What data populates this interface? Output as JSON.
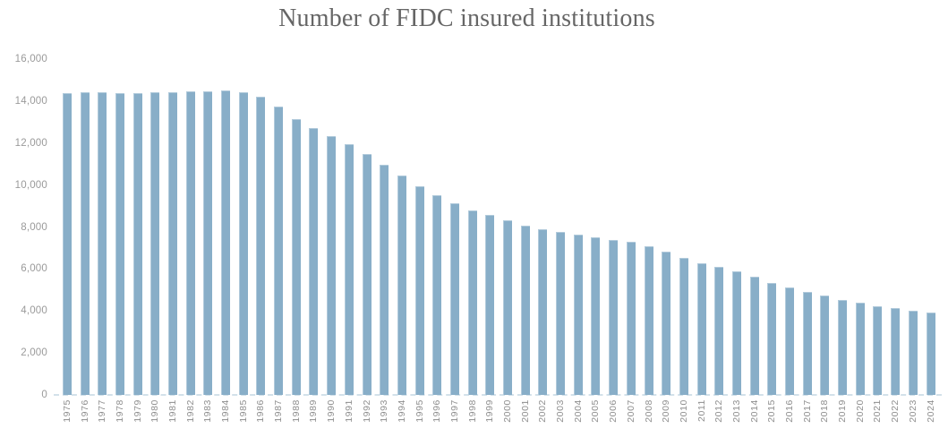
{
  "title": "Number of FIDC insured institutions",
  "colors": {
    "bar_fill": "#88aec8",
    "bar_edge_highlight": "#b3c8d9",
    "baseline_dash": "#d3e1ea",
    "title_text": "#666666",
    "y_tick_text": "#9a9a9a",
    "x_tick_text": "#8e8e8e",
    "background": "#ffffff"
  },
  "chart_data": {
    "type": "bar",
    "title": "Number of FIDC insured institutions",
    "xlabel": "",
    "ylabel": "",
    "ylim": [
      0,
      16000
    ],
    "grid": "off",
    "legend_position": "none",
    "x_tick_rotation": -90,
    "baseline_style": "dashed",
    "categories": [
      "1975",
      "1976",
      "1977",
      "1978",
      "1979",
      "1980",
      "1981",
      "1982",
      "1983",
      "1984",
      "1985",
      "1986",
      "1987",
      "1988",
      "1989",
      "1990",
      "1991",
      "1992",
      "1993",
      "1994",
      "1995",
      "1996",
      "1997",
      "1998",
      "1999",
      "2000",
      "2001",
      "2002",
      "2003",
      "2004",
      "2005",
      "2006",
      "2007",
      "2008",
      "2009",
      "2010",
      "2011",
      "2012",
      "2013",
      "2014",
      "2015",
      "2016",
      "2017",
      "2018",
      "2019",
      "2020",
      "2021",
      "2022",
      "2023",
      "2024"
    ],
    "values": [
      14384,
      14410,
      14414,
      14391,
      14364,
      14434,
      14414,
      14451,
      14469,
      14496,
      14417,
      14210,
      13723,
      13137,
      12715,
      12347,
      11927,
      11466,
      10959,
      10452,
      9941,
      9528,
      9143,
      8774,
      8580,
      8315,
      8080,
      7888,
      7770,
      7631,
      7526,
      7402,
      7284,
      7087,
      6840,
      6530,
      6291,
      6096,
      5876,
      5643,
      5338,
      5112,
      4918,
      4717,
      4519,
      4377,
      4236,
      4136,
      4026,
      3928
    ],
    "y_ticks": [
      {
        "value": 0,
        "label": "0"
      },
      {
        "value": 2000,
        "label": "2,000"
      },
      {
        "value": 4000,
        "label": "4,000"
      },
      {
        "value": 6000,
        "label": "6,000"
      },
      {
        "value": 8000,
        "label": "8,000"
      },
      {
        "value": 10000,
        "label": "10,000"
      },
      {
        "value": 12000,
        "label": "12,000"
      },
      {
        "value": 14000,
        "label": "14,000"
      },
      {
        "value": 16000,
        "label": "16,000"
      }
    ]
  }
}
